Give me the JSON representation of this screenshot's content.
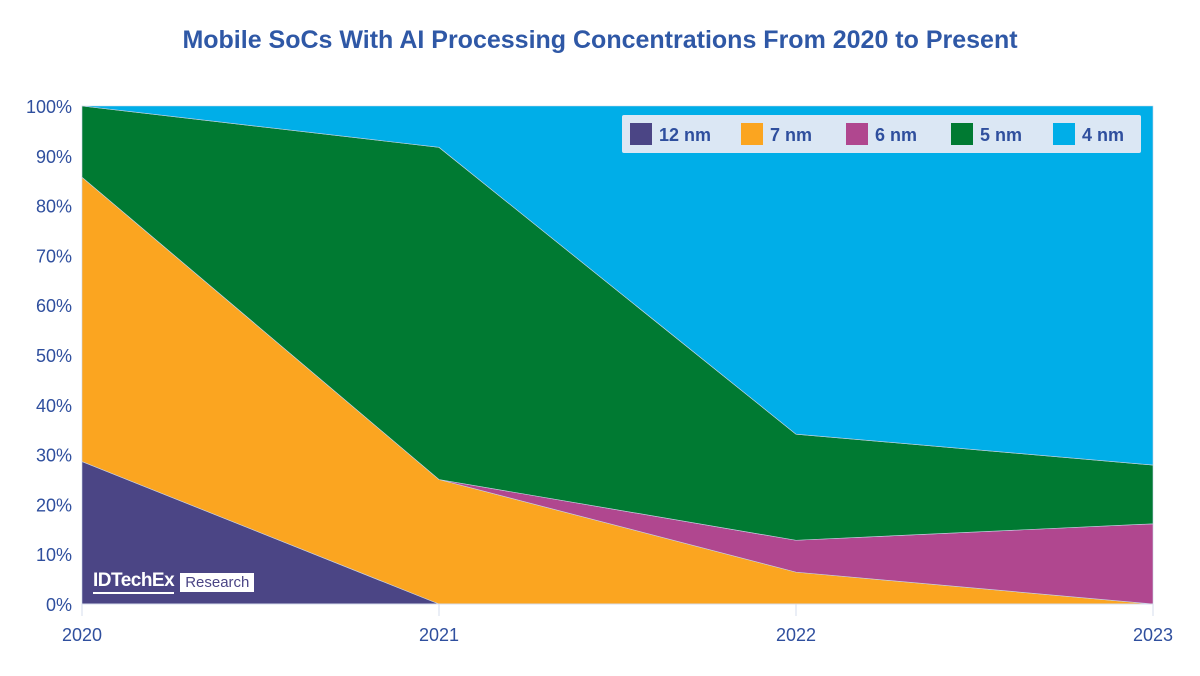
{
  "chart_data": {
    "type": "area",
    "stacked": true,
    "title": "Mobile SoCs With AI Processing Concentrations From 2020 to Present",
    "xlabel": "",
    "ylabel": "",
    "categories": [
      "2020",
      "2021",
      "2022",
      "2023"
    ],
    "ylim": [
      0,
      100
    ],
    "yticks": [
      "0%",
      "10%",
      "20%",
      "30%",
      "40%",
      "50%",
      "60%",
      "70%",
      "80%",
      "90%",
      "100%"
    ],
    "grid": false,
    "legend_position": "top-right",
    "series": [
      {
        "name": "12 nm",
        "color": "#4b4585",
        "values": [
          28.6,
          0,
          0,
          0
        ]
      },
      {
        "name": "7 nm",
        "color": "#fba520",
        "values": [
          57.1,
          25.0,
          6.4,
          0
        ]
      },
      {
        "name": "6 nm",
        "color": "#b0478f",
        "values": [
          0,
          0,
          6.4,
          16.1
        ]
      },
      {
        "name": "5 nm",
        "color": "#007a32",
        "values": [
          14.3,
          66.7,
          21.3,
          11.8
        ]
      },
      {
        "name": "4 nm",
        "color": "#00aee8",
        "values": [
          0,
          8.3,
          65.9,
          72.1
        ]
      }
    ]
  },
  "watermark": {
    "brand": "IDTechEx",
    "suffix": "Research"
  }
}
